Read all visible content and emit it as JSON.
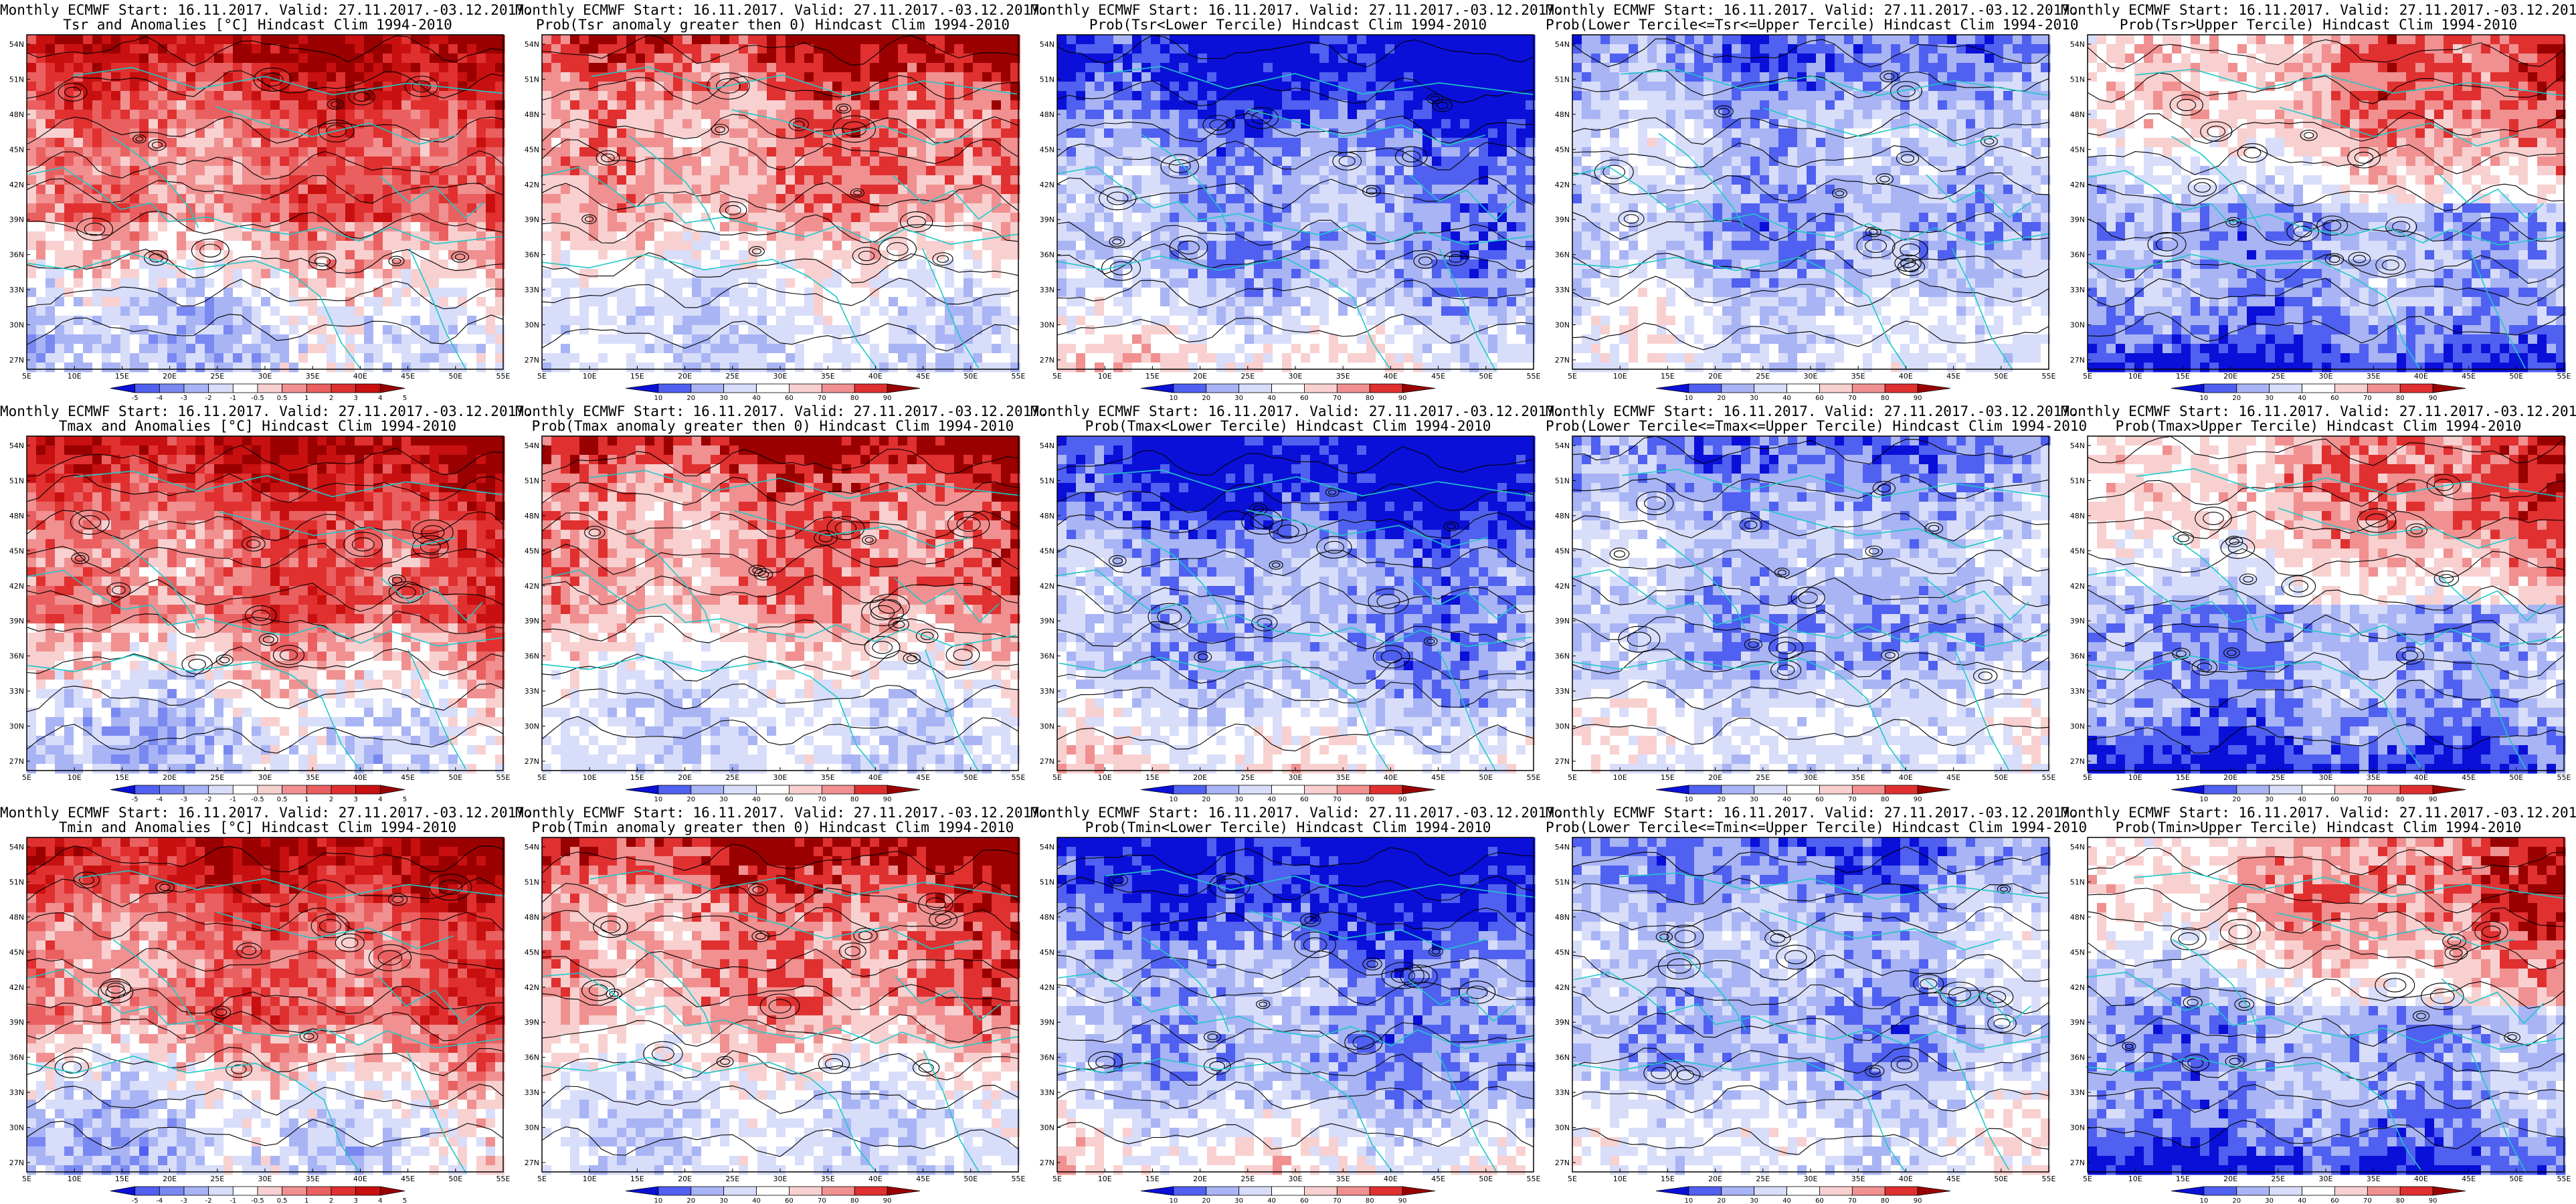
{
  "header": "Monthly ECMWF Start: 16.11.2017. Valid: 27.11.2017.-03.12.2017.",
  "colors": {
    "blue_dark": "#0a10d8",
    "blue_mid": "#5060f0",
    "blue_light": "#a8b4f4",
    "blue_pale": "#d8ddfa",
    "white": "#ffffff",
    "red_pale": "#f8d0d0",
    "red_light": "#f09090",
    "red_mid": "#e03030",
    "red_dark": "#9a0000",
    "coast": "#1ec8c8",
    "contour": "#000000"
  },
  "lat_labels": [
    "54N",
    "51N",
    "48N",
    "45N",
    "42N",
    "39N",
    "36N",
    "33N",
    "30N",
    "27N"
  ],
  "lon_labels": [
    "5E",
    "10E",
    "15E",
    "20E",
    "25E",
    "30E",
    "35E",
    "40E",
    "45E",
    "50E",
    "55E"
  ],
  "anom_scale": [
    "-5",
    "-4",
    "-3",
    "-2",
    "-1",
    "-0.5",
    "0.5",
    "1",
    "2",
    "3",
    "4",
    "5"
  ],
  "prob_scale": [
    "10",
    "20",
    "30",
    "40",
    "60",
    "70",
    "80",
    "90"
  ],
  "rows": [
    {
      "variable": "Tsr",
      "panels": [
        {
          "subtitle": "Tsr and Anomalies [°C] Hindcast Clim 1994-2010",
          "scale": "anom",
          "pattern": "anom"
        },
        {
          "subtitle": "Prob(Tsr anomaly greater then 0) Hindcast Clim 1994-2010",
          "scale": "prob",
          "pattern": "probpos"
        },
        {
          "subtitle": "Prob(Tsr<Lower Tercile) Hindcast Clim 1994-2010",
          "scale": "prob",
          "pattern": "lower"
        },
        {
          "subtitle": "Prob(Lower Tercile<=Tsr<=Upper Tercile) Hindcast Clim 1994-2010",
          "scale": "prob",
          "pattern": "middle"
        },
        {
          "subtitle": "Prob(Tsr>Upper Tercile) Hindcast Clim 1994-2010",
          "scale": "prob",
          "pattern": "upper"
        }
      ]
    },
    {
      "variable": "Tmax",
      "panels": [
        {
          "subtitle": "Tmax and Anomalies [°C] Hindcast Clim 1994-2010",
          "scale": "anom",
          "pattern": "anom"
        },
        {
          "subtitle": "Prob(Tmax anomaly greater then 0) Hindcast Clim 1994-2010",
          "scale": "prob",
          "pattern": "probpos"
        },
        {
          "subtitle": "Prob(Tmax<Lower Tercile) Hindcast Clim 1994-2010",
          "scale": "prob",
          "pattern": "lower"
        },
        {
          "subtitle": "Prob(Lower Tercile<=Tmax<=Upper Tercile) Hindcast Clim 1994-2010",
          "scale": "prob",
          "pattern": "middle"
        },
        {
          "subtitle": "Prob(Tmax>Upper Tercile) Hindcast Clim 1994-2010",
          "scale": "prob",
          "pattern": "upper"
        }
      ]
    },
    {
      "variable": "Tmin",
      "panels": [
        {
          "subtitle": "Tmin and Anomalies [°C] Hindcast Clim 1994-2010",
          "scale": "anom",
          "pattern": "anom"
        },
        {
          "subtitle": "Prob(Tmin anomaly greater then 0) Hindcast Clim 1994-2010",
          "scale": "prob",
          "pattern": "probpos"
        },
        {
          "subtitle": "Prob(Tmin<Lower Tercile) Hindcast Clim 1994-2010",
          "scale": "prob",
          "pattern": "lower"
        },
        {
          "subtitle": "Prob(Lower Tercile<=Tmin<=Upper Tercile) Hindcast Clim 1994-2010",
          "scale": "prob",
          "pattern": "middle"
        },
        {
          "subtitle": "Prob(Tmin>Upper Tercile) Hindcast Clim 1994-2010",
          "scale": "prob",
          "pattern": "upper"
        }
      ]
    }
  ]
}
